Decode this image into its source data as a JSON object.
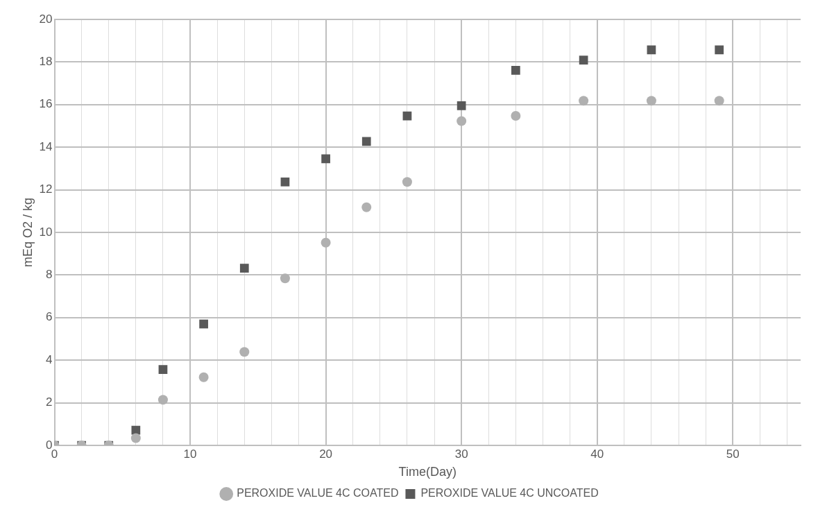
{
  "chart_data": {
    "type": "scatter",
    "xlabel": "Time(Day)",
    "ylabel": "mEq O2 / kg",
    "x": [
      0,
      2,
      4,
      6,
      8,
      11,
      14,
      17,
      20,
      23,
      26,
      30,
      34,
      39,
      44,
      49
    ],
    "series": [
      {
        "name": "PEROXIDE VALUE 4C COATED",
        "color": "#b0b0b0",
        "marker": "circle",
        "values": [
          0,
          0,
          0,
          0.34,
          2.14,
          3.2,
          4.39,
          7.84,
          9.52,
          11.18,
          12.37,
          15.23,
          15.47,
          16.18,
          16.18,
          16.18
        ]
      },
      {
        "name": "PEROXIDE VALUE 4C UNCOATED",
        "color": "#595959",
        "marker": "square",
        "values": [
          0,
          0,
          0,
          0.71,
          3.56,
          5.7,
          8.32,
          12.37,
          13.46,
          14.27,
          15.47,
          15.95,
          17.61,
          18.09,
          18.57,
          18.57
        ]
      }
    ],
    "xlim": [
      0,
      55
    ],
    "xticks": [
      0,
      {
        "value": 2,
        "label": null
      },
      {
        "value": 4,
        "label": null
      },
      {
        "value": 6,
        "label": null
      },
      {
        "value": 8,
        "label": null
      },
      10,
      {
        "value": 12,
        "label": null
      },
      {
        "value": 14,
        "label": null
      },
      {
        "value": 16,
        "label": null
      },
      {
        "value": 18,
        "label": null
      },
      20,
      {
        "value": 22,
        "label": null
      },
      {
        "value": 24,
        "label": null
      },
      {
        "value": 26,
        "label": null
      },
      {
        "value": 28,
        "label": null
      },
      30,
      {
        "value": 32,
        "label": null
      },
      {
        "value": 34,
        "label": null
      },
      {
        "value": 36,
        "label": null
      },
      {
        "value": 38,
        "label": null
      },
      40,
      {
        "value": 42,
        "label": null
      },
      {
        "value": 44,
        "label": null
      },
      {
        "value": 46,
        "label": null
      },
      {
        "value": 48,
        "label": null
      },
      50,
      {
        "value": 52,
        "label": null
      },
      {
        "value": 54,
        "label": null
      }
    ],
    "ylim": [
      0,
      20
    ],
    "yticks": [
      0,
      2,
      4,
      6,
      8,
      10,
      12,
      14,
      16,
      18,
      20
    ],
    "grid": true,
    "legend": "bottom"
  }
}
